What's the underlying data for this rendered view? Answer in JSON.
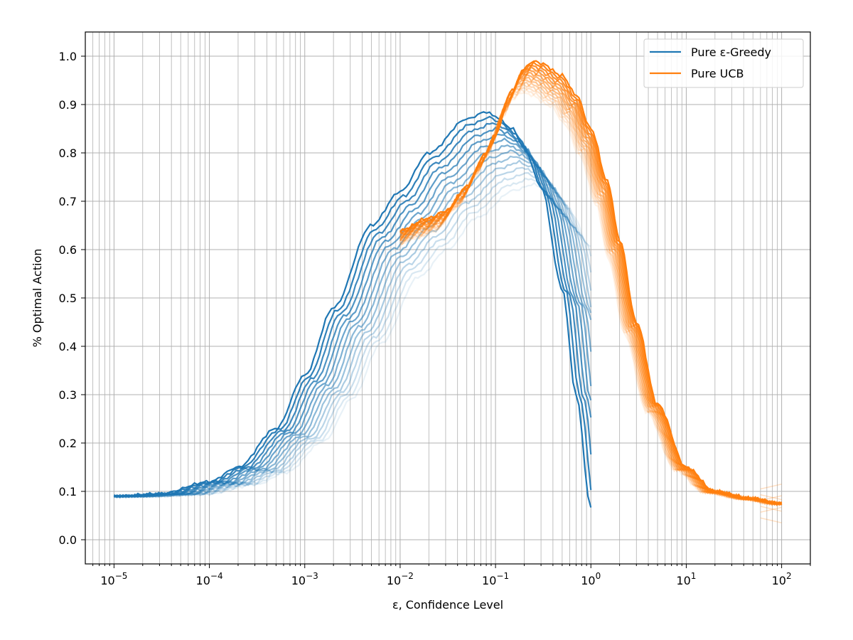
{
  "chart_data": {
    "type": "line",
    "title": "",
    "xlabel": "ε, Confidence Level",
    "ylabel": "% Optimal Action",
    "xscale": "log",
    "xlim": [
      5e-06,
      200
    ],
    "ylim": [
      -0.05,
      1.05
    ],
    "grid": true,
    "legend_position": "top-right",
    "x_tick_labels": [
      {
        "base": "10",
        "exp": "−5",
        "value": 1e-05
      },
      {
        "base": "10",
        "exp": "−4",
        "value": 0.0001
      },
      {
        "base": "10",
        "exp": "−3",
        "value": 0.001
      },
      {
        "base": "10",
        "exp": "−2",
        "value": 0.01
      },
      {
        "base": "10",
        "exp": "−1",
        "value": 0.1
      },
      {
        "base": "10",
        "exp": "0",
        "value": 1
      },
      {
        "base": "10",
        "exp": "1",
        "value": 10
      },
      {
        "base": "10",
        "exp": "2",
        "value": 100
      }
    ],
    "y_ticks": [
      0.0,
      0.1,
      0.2,
      0.3,
      0.4,
      0.5,
      0.6,
      0.7,
      0.8,
      0.9,
      1.0
    ],
    "y_tick_labels": [
      "0.0",
      "0.1",
      "0.2",
      "0.3",
      "0.4",
      "0.5",
      "0.6",
      "0.7",
      "0.8",
      "0.9",
      "1.0"
    ],
    "series": [
      {
        "name": "Pure ε-Greedy",
        "color": "#1f77b4",
        "note_family": "many runs drawn with varying opacity; darkest run shown",
        "x": [
          1e-05,
          3e-05,
          0.0001,
          0.0002,
          0.0005,
          0.001,
          0.002,
          0.005,
          0.01,
          0.02,
          0.05,
          0.08,
          0.1,
          0.15,
          0.2,
          0.3,
          0.5,
          0.7,
          1.0
        ],
        "y": [
          0.09,
          0.095,
          0.12,
          0.15,
          0.23,
          0.34,
          0.48,
          0.65,
          0.72,
          0.8,
          0.87,
          0.885,
          0.875,
          0.85,
          0.81,
          0.73,
          0.52,
          0.3,
          0.065
        ]
      },
      {
        "name": "Pure UCB",
        "color": "#ff7f0e",
        "note_family": "many runs drawn with varying opacity; darkest run shown",
        "x": [
          0.01,
          0.02,
          0.03,
          0.05,
          0.08,
          0.1,
          0.15,
          0.2,
          0.25,
          0.3,
          0.5,
          0.7,
          1.0,
          1.5,
          2,
          3,
          5,
          10,
          20,
          50,
          100
        ],
        "y": [
          0.64,
          0.665,
          0.68,
          0.73,
          0.8,
          0.84,
          0.93,
          0.975,
          0.99,
          0.985,
          0.96,
          0.92,
          0.85,
          0.74,
          0.62,
          0.45,
          0.28,
          0.15,
          0.1,
          0.085,
          0.075
        ]
      }
    ],
    "ghost_runs": {
      "count": 14,
      "greedy_min_peak": 0.735,
      "greedy_peak_shift_decades": 0.5,
      "ucb_min_peak": 0.925
    }
  }
}
